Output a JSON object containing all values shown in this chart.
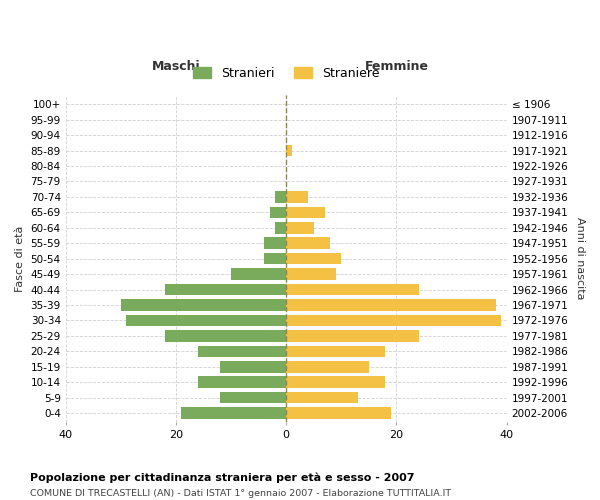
{
  "age_groups": [
    "0-4",
    "5-9",
    "10-14",
    "15-19",
    "20-24",
    "25-29",
    "30-34",
    "35-39",
    "40-44",
    "45-49",
    "50-54",
    "55-59",
    "60-64",
    "65-69",
    "70-74",
    "75-79",
    "80-84",
    "85-89",
    "90-94",
    "95-99",
    "100+"
  ],
  "birth_years": [
    "2002-2006",
    "1997-2001",
    "1992-1996",
    "1987-1991",
    "1982-1986",
    "1977-1981",
    "1972-1976",
    "1967-1971",
    "1962-1966",
    "1957-1961",
    "1952-1956",
    "1947-1951",
    "1942-1946",
    "1937-1941",
    "1932-1936",
    "1927-1931",
    "1922-1926",
    "1917-1921",
    "1912-1916",
    "1907-1911",
    "≤ 1906"
  ],
  "males": [
    19,
    12,
    16,
    12,
    16,
    22,
    29,
    30,
    22,
    10,
    4,
    4,
    2,
    3,
    2,
    0,
    0,
    0,
    0,
    0,
    0
  ],
  "females": [
    19,
    13,
    18,
    15,
    18,
    24,
    39,
    38,
    24,
    9,
    10,
    8,
    5,
    7,
    4,
    0,
    0,
    1,
    0,
    0,
    0
  ],
  "male_color": "#7aaa5b",
  "female_color": "#f5c144",
  "title1": "Popolazione per cittadinanza straniera per età e sesso - 2007",
  "title2": "COMUNE DI TRECASTELLI (AN) - Dati ISTAT 1° gennaio 2007 - Elaborazione TUTTITALIA.IT",
  "xlabel_left": "Maschi",
  "xlabel_right": "Femmine",
  "ylabel_left": "Fasce di età",
  "ylabel_right": "Anni di nascita",
  "legend_male": "Stranieri",
  "legend_female": "Straniere",
  "xlim": 40,
  "background_color": "#ffffff",
  "grid_color": "#cccccc"
}
